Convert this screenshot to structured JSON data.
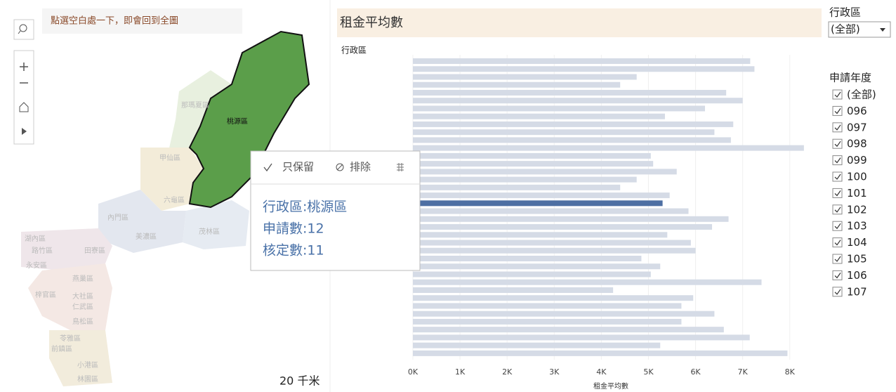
{
  "map": {
    "hint": "點選空白處一下，即會回到全圖",
    "scale": "20 千米",
    "districts": [
      "那瑪夏區",
      "桃源區",
      "甲仙區",
      "六龜區",
      "內門區",
      "茂林區",
      "美濃區",
      "湖內區",
      "路竹區",
      "田寮區",
      "永安區",
      "燕巢區",
      "梓官區",
      "大社區",
      "仁武區",
      "鳥松區",
      "苓雅區",
      "前鎮區",
      "小港區",
      "林園區"
    ]
  },
  "tooltip": {
    "actions": [
      "只保留",
      "排除"
    ],
    "lines": [
      "行政區:桃源區",
      "申請數:12",
      "核定數:11"
    ]
  },
  "filters": {
    "district": {
      "title": "行政區",
      "value": "(全部)"
    },
    "year": {
      "title": "申請年度",
      "options": [
        "(全部)",
        "096",
        "097",
        "098",
        "099",
        "100",
        "101",
        "102",
        "103",
        "104",
        "105",
        "106",
        "107"
      ]
    }
  },
  "chart_data": {
    "type": "bar",
    "orientation": "horizontal",
    "title": "租金平均數",
    "y_label": "行政區",
    "x_label": "租金平均數",
    "categories": [
      null,
      null,
      null,
      null,
      null,
      null,
      null,
      null,
      null,
      null,
      null,
      null,
      null,
      null,
      null,
      null,
      null,
      null,
      null,
      null,
      null,
      null,
      null,
      null,
      null,
      null,
      null,
      null,
      null,
      null,
      null,
      null,
      null,
      null,
      null,
      null,
      null,
      null
    ],
    "values": [
      7160,
      7250,
      4750,
      4400,
      6650,
      7000,
      6200,
      5350,
      6800,
      6400,
      6750,
      8300,
      5050,
      5100,
      5600,
      4750,
      4400,
      5450,
      5300,
      5850,
      6700,
      6350,
      5400,
      5900,
      6000,
      4850,
      5250,
      5050,
      7400,
      4250,
      5950,
      5700,
      6400,
      5700,
      6600,
      7150,
      5250,
      7950
    ],
    "color": "#d5dbe6",
    "highlight_color": "#4e6fa3",
    "selected": 18,
    "xlim": [
      0,
      8600
    ],
    "xticks": [
      {
        "value": 0,
        "label": "0K"
      },
      {
        "value": 1000,
        "label": "1K"
      },
      {
        "value": 2000,
        "label": "2K"
      },
      {
        "value": 3000,
        "label": "3K"
      },
      {
        "value": 4000,
        "label": "4K"
      },
      {
        "value": 5000,
        "label": "5K"
      },
      {
        "value": 6000,
        "label": "6K"
      },
      {
        "value": 7000,
        "label": "7K"
      },
      {
        "value": 8000,
        "label": "8K"
      }
    ],
    "grid": true
  }
}
